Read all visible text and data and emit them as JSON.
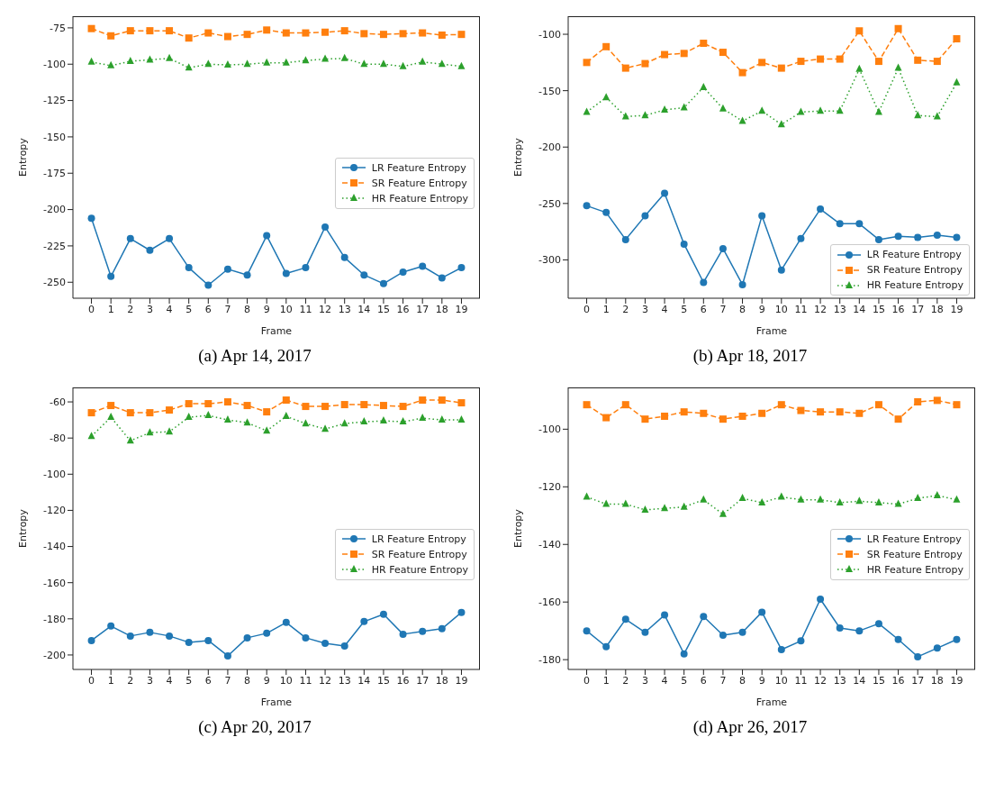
{
  "chart_data": [
    {
      "type": "line",
      "title": "(a) Apr 14, 2017",
      "xlabel": "Frame",
      "ylabel": "Entropy",
      "x": [
        0,
        1,
        2,
        3,
        4,
        5,
        6,
        7,
        8,
        9,
        10,
        11,
        12,
        13,
        14,
        15,
        16,
        17,
        18,
        19
      ],
      "xlim": [
        -0.95,
        19.95
      ],
      "xticks": [
        0,
        1,
        2,
        3,
        4,
        5,
        6,
        7,
        8,
        9,
        10,
        11,
        12,
        13,
        14,
        15,
        16,
        17,
        18,
        19
      ],
      "ylim": [
        -261,
        -67
      ],
      "yticks": [
        -250,
        -225,
        -200,
        -175,
        -150,
        -125,
        -100,
        -75
      ],
      "legend": "center right",
      "series": [
        {
          "name": "LR Feature Entropy",
          "color": "#1f77b4",
          "marker": "circle",
          "line_style": "solid",
          "values": [
            -206,
            -246,
            -220,
            -228,
            -220,
            -240,
            -252,
            -241,
            -245,
            -218,
            -244,
            -240,
            -212,
            -233,
            -245,
            -251,
            -243,
            -239,
            -247,
            -240
          ]
        },
        {
          "name": "SR Feature Entropy",
          "color": "#ff7f0e",
          "marker": "square",
          "line_style": "dashed",
          "values": [
            -75.5,
            -80.5,
            -77,
            -77,
            -77,
            -82,
            -78.5,
            -81,
            -79.5,
            -76.5,
            -78.5,
            -78.5,
            -78,
            -77,
            -79,
            -79.5,
            -79,
            -78.5,
            -80,
            -79.5
          ]
        },
        {
          "name": "HR Feature Entropy",
          "color": "#2ca02c",
          "marker": "triangle",
          "line_style": "dotted",
          "values": [
            -98.5,
            -101,
            -98,
            -97,
            -96,
            -102.5,
            -100,
            -100.5,
            -100,
            -99,
            -99,
            -97.5,
            -96.5,
            -96,
            -100,
            -100,
            -101.5,
            -98.5,
            -100,
            -101.5
          ]
        }
      ]
    },
    {
      "type": "line",
      "title": "(b) Apr 18, 2017",
      "xlabel": "Frame",
      "ylabel": "Entropy",
      "x": [
        0,
        1,
        2,
        3,
        4,
        5,
        6,
        7,
        8,
        9,
        10,
        11,
        12,
        13,
        14,
        15,
        16,
        17,
        18,
        19
      ],
      "xlim": [
        -0.95,
        19.95
      ],
      "xticks": [
        0,
        1,
        2,
        3,
        4,
        5,
        6,
        7,
        8,
        9,
        10,
        11,
        12,
        13,
        14,
        15,
        16,
        17,
        18,
        19
      ],
      "ylim": [
        -334,
        -84
      ],
      "yticks": [
        -300,
        -250,
        -200,
        -150,
        -100
      ],
      "legend": "lower right",
      "series": [
        {
          "name": "LR Feature Entropy",
          "color": "#1f77b4",
          "marker": "circle",
          "line_style": "solid",
          "values": [
            -252,
            -258,
            -282,
            -261,
            -241,
            -286,
            -320,
            -290,
            -322,
            -261,
            -309,
            -281,
            -255,
            -268,
            -268,
            -282,
            -279,
            -280,
            -278,
            -280
          ]
        },
        {
          "name": "SR Feature Entropy",
          "color": "#ff7f0e",
          "marker": "square",
          "line_style": "dashed",
          "values": [
            -125,
            -111,
            -130,
            -126,
            -118,
            -117,
            -108,
            -116,
            -134,
            -125,
            -130,
            -124,
            -122,
            -122,
            -97,
            -124,
            -95,
            -123,
            -124,
            -104
          ]
        },
        {
          "name": "HR Feature Entropy",
          "color": "#2ca02c",
          "marker": "triangle",
          "line_style": "dotted",
          "values": [
            -169,
            -156,
            -173,
            -172,
            -167,
            -165,
            -147,
            -166,
            -177,
            -168,
            -180,
            -169,
            -168,
            -168,
            -131,
            -169,
            -130,
            -172,
            -173,
            -143
          ]
        }
      ]
    },
    {
      "type": "line",
      "title": "(c) Apr 20, 2017",
      "xlabel": "Frame",
      "ylabel": "Entropy",
      "x": [
        0,
        1,
        2,
        3,
        4,
        5,
        6,
        7,
        8,
        9,
        10,
        11,
        12,
        13,
        14,
        15,
        16,
        17,
        18,
        19
      ],
      "xlim": [
        -0.95,
        19.95
      ],
      "xticks": [
        0,
        1,
        2,
        3,
        4,
        5,
        6,
        7,
        8,
        9,
        10,
        11,
        12,
        13,
        14,
        15,
        16,
        17,
        18,
        19
      ],
      "ylim": [
        -208,
        -52
      ],
      "yticks": [
        -200,
        -180,
        -160,
        -140,
        -120,
        -100,
        -80,
        -60
      ],
      "legend": "center right",
      "series": [
        {
          "name": "LR Feature Entropy",
          "color": "#1f77b4",
          "marker": "circle",
          "line_style": "solid",
          "values": [
            -192,
            -184,
            -189.5,
            -187.5,
            -189.5,
            -193,
            -192,
            -200.5,
            -190.5,
            -188,
            -182,
            -190.5,
            -193.5,
            -195,
            -181.5,
            -177.5,
            -188.5,
            -187,
            -185.5,
            -176.5
          ]
        },
        {
          "name": "SR Feature Entropy",
          "color": "#ff7f0e",
          "marker": "square",
          "line_style": "dashed",
          "values": [
            -66,
            -62,
            -66,
            -66,
            -64.5,
            -61,
            -61,
            -60,
            -62,
            -65.5,
            -59,
            -62.5,
            -62.5,
            -61.5,
            -61.5,
            -62,
            -62.5,
            -59,
            -59,
            -60.5
          ]
        },
        {
          "name": "HR Feature Entropy",
          "color": "#2ca02c",
          "marker": "triangle",
          "line_style": "dotted",
          "values": [
            -79,
            -68.5,
            -81.5,
            -77,
            -76.5,
            -68.5,
            -67.5,
            -70,
            -71.5,
            -76,
            -68,
            -72,
            -75,
            -72,
            -71,
            -70.5,
            -71,
            -69,
            -70,
            -70
          ]
        }
      ]
    },
    {
      "type": "line",
      "title": "(d) Apr 26, 2017",
      "xlabel": "Frame",
      "ylabel": "Entropy",
      "x": [
        0,
        1,
        2,
        3,
        4,
        5,
        6,
        7,
        8,
        9,
        10,
        11,
        12,
        13,
        14,
        15,
        16,
        17,
        18,
        19
      ],
      "xlim": [
        -0.95,
        19.95
      ],
      "xticks": [
        0,
        1,
        2,
        3,
        4,
        5,
        6,
        7,
        8,
        9,
        10,
        11,
        12,
        13,
        14,
        15,
        16,
        17,
        18,
        19
      ],
      "ylim": [
        -183.4,
        -85.5
      ],
      "yticks": [
        -180,
        -160,
        -140,
        -120,
        -100
      ],
      "legend": "center right",
      "series": [
        {
          "name": "LR Feature Entropy",
          "color": "#1f77b4",
          "marker": "circle",
          "line_style": "solid",
          "values": [
            -170,
            -175.5,
            -166,
            -170.5,
            -164.5,
            -178,
            -165,
            -171.5,
            -170.5,
            -163.5,
            -176.5,
            -173.5,
            -159,
            -169,
            -170,
            -167.5,
            -173,
            -179,
            -176,
            -173
          ]
        },
        {
          "name": "SR Feature Entropy",
          "color": "#ff7f0e",
          "marker": "square",
          "line_style": "dashed",
          "values": [
            -91.5,
            -96,
            -91.5,
            -96.5,
            -95.5,
            -94,
            -94.5,
            -96.5,
            -95.5,
            -94.5,
            -91.5,
            -93.5,
            -94,
            -94,
            -94.5,
            -91.5,
            -96.5,
            -90.5,
            -90,
            -91.5
          ]
        },
        {
          "name": "HR Feature Entropy",
          "color": "#2ca02c",
          "marker": "triangle",
          "line_style": "dotted",
          "values": [
            -123.5,
            -126,
            -126,
            -128,
            -127.5,
            -127,
            -124.5,
            -129.5,
            -124,
            -125.5,
            -123.5,
            -124.5,
            -124.5,
            -125.5,
            -125,
            -125.5,
            -126,
            -124,
            -123,
            -124.5
          ]
        }
      ]
    }
  ]
}
